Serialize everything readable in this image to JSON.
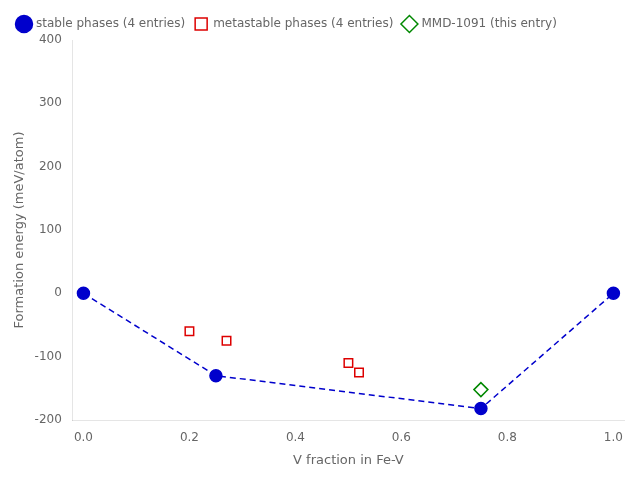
{
  "chart_data": {
    "type": "scatter",
    "xlabel": "V fraction in Fe-V",
    "ylabel": "Formation energy (meV/atom)",
    "xlim": [
      -0.02,
      1.02
    ],
    "xticks": [
      {
        "value": 0.0,
        "label": "0.0"
      },
      0.2,
      0.4,
      0.6,
      0.8,
      {
        "value": 1.0,
        "label": "1.0"
      }
    ],
    "ylim": [
      -200,
      400
    ],
    "yticks": [
      -200,
      -100,
      0,
      100,
      200,
      300,
      400
    ],
    "grid": false,
    "legend": "upper left",
    "series": [
      {
        "name": "stable phases (4 entries)",
        "color": "#0000cc",
        "marker": "circle",
        "line_style": "dashed",
        "x": [
          0.0,
          0.25,
          0.75,
          1.0
        ],
        "values": [
          0.0,
          -130.0,
          -182.0,
          0.0
        ]
      },
      {
        "name": "metastable phases (4 entries)",
        "color": "#dd0000",
        "marker": "open_square",
        "x": [
          0.2,
          0.27,
          0.5,
          0.52
        ],
        "values": [
          -60.0,
          -75.0,
          -110.0,
          -125.0
        ]
      },
      {
        "name": "MMD-1091 (this entry)",
        "color": "#008800",
        "marker": "open_diamond",
        "x": [
          0.75
        ],
        "values": [
          -152.0
        ]
      }
    ]
  }
}
